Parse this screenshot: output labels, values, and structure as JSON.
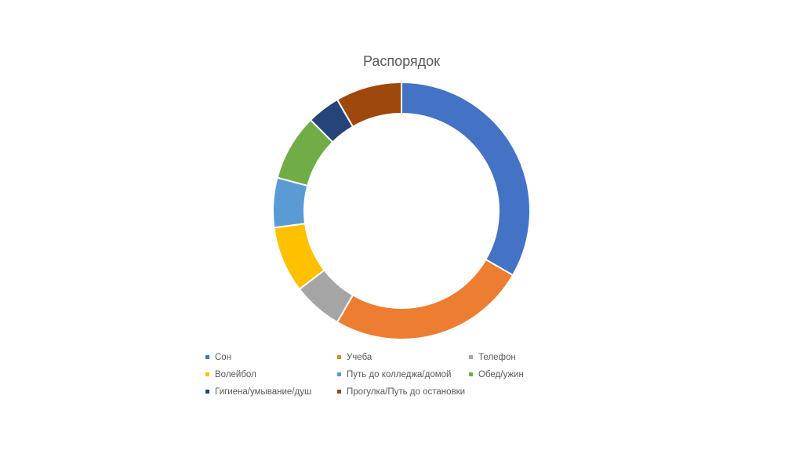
{
  "chart_data": {
    "type": "pie",
    "subtype": "donut",
    "title": "Распорядок",
    "legend_position": "bottom",
    "series": [
      {
        "labels": [
          "Сон",
          "Учеба",
          "Телефон",
          "Волейбол",
          "Путь до колледжа/домой",
          "Обед/ужин",
          "Гигиена/умывание/душ",
          "Прогулка/Путь до остановки"
        ],
        "values": [
          8,
          6,
          1.5,
          2,
          1.5,
          2,
          1,
          2
        ],
        "colors": [
          "#4472C4",
          "#ED7D31",
          "#A5A5A5",
          "#FFC000",
          "#5B9BD5",
          "#70AD47",
          "#264478",
          "#9E480E"
        ]
      }
    ]
  }
}
